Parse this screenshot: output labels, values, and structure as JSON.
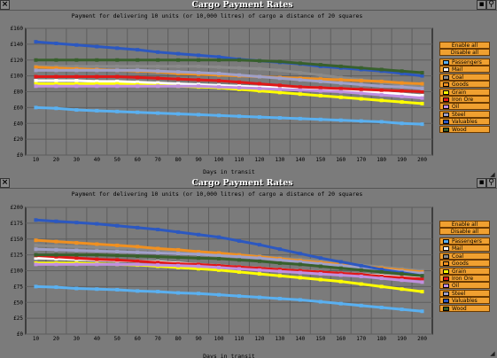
{
  "windows": [
    {
      "title": "Cargo Payment Rates",
      "subtitle": "Payment for delivering 10 units (or 10,000 litres) of cargo a distance of 20 squares",
      "buttons": {
        "enable_all": "Enable all",
        "disable_all": "Disable all"
      },
      "legend": [
        {
          "label": "Passengers",
          "color": "#5ab0f0"
        },
        {
          "label": "Mail",
          "color": "#ffffff"
        },
        {
          "label": "Coal",
          "color": "#8a8a8a"
        },
        {
          "label": "Goods",
          "color": "#f09020"
        },
        {
          "label": "Grain",
          "color": "#ffff00"
        },
        {
          "label": "Iron Ore",
          "color": "#e01818"
        },
        {
          "label": "Oil",
          "color": "#c090e0"
        },
        {
          "label": "Steel",
          "color": "#a0a0c8"
        },
        {
          "label": "Valuables",
          "color": "#2c58c0"
        },
        {
          "label": "Wood",
          "color": "#38602c"
        }
      ],
      "chart_data": {
        "type": "line",
        "title": "Cargo Payment Rates",
        "subtitle": "Payment for delivering 10 units (or 10,000 litres) of cargo a distance of 20 squares",
        "xlabel": "Days in transit",
        "ylabel": "",
        "x": [
          10,
          20,
          30,
          40,
          50,
          60,
          70,
          80,
          90,
          100,
          110,
          120,
          130,
          140,
          150,
          160,
          170,
          180,
          190,
          200
        ],
        "x_ticks": [
          "10",
          "20",
          "30",
          "40",
          "50",
          "60",
          "70",
          "80",
          "90",
          "100",
          "110",
          "120",
          "130",
          "140",
          "150",
          "160",
          "170",
          "180",
          "190",
          "200"
        ],
        "y_ticks": [
          "£0",
          "£20",
          "£40",
          "£60",
          "£80",
          "£100",
          "£120",
          "£140",
          "£160"
        ],
        "ylim": [
          0,
          160
        ],
        "grid": true,
        "series": [
          {
            "name": "Passengers",
            "color": "#5ab0f0",
            "values": [
              60,
              59,
              57,
              56,
              55,
              54,
              53,
              52,
              51,
              50,
              49,
              48,
              47,
              46,
              45,
              44,
              43,
              42,
              40,
              39
            ]
          },
          {
            "name": "Mail",
            "color": "#ffffff",
            "values": [
              94,
              94,
              94,
              93,
              93,
              92,
              91,
              90,
              89,
              88,
              87,
              86,
              85,
              84,
              83,
              82,
              80,
              79,
              77,
              75
            ]
          },
          {
            "name": "Coal",
            "color": "#8a8a8a",
            "values": [
              112,
              112,
              112,
              112,
              112,
              112,
              112,
              112,
              112,
              111,
              110,
              109,
              107,
              104,
              101,
              98,
              95,
              92,
              89,
              86
            ]
          },
          {
            "name": "Goods",
            "color": "#f09020",
            "values": [
              111,
              110,
              109,
              108,
              107,
              106,
              105,
              103,
              102,
              101,
              100,
              99,
              98,
              97,
              96,
              95,
              94,
              93,
              91,
              90
            ]
          },
          {
            "name": "Grain",
            "color": "#ffff00",
            "values": [
              90,
              90,
              90,
              90,
              90,
              89,
              88,
              87,
              86,
              85,
              83,
              81,
              79,
              77,
              75,
              73,
              71,
              69,
              67,
              65
            ]
          },
          {
            "name": "Iron Ore",
            "color": "#e01818",
            "values": [
              99,
              99,
              99,
              99,
              99,
              98,
              97,
              96,
              95,
              94,
              92,
              90,
              88,
              86,
              85,
              84,
              83,
              82,
              81,
              80
            ]
          },
          {
            "name": "Oil",
            "color": "#c090e0",
            "values": [
              87,
              87,
              87,
              87,
              87,
              87,
              87,
              87,
              87,
              86,
              85,
              84,
              83,
              82,
              81,
              80,
              78,
              76,
              74,
              72
            ]
          },
          {
            "name": "Steel",
            "color": "#a0a0c8",
            "values": [
              107,
              107,
              107,
              107,
              107,
              107,
              106,
              105,
              104,
              103,
              101,
              99,
              97,
              95,
              93,
              91,
              89,
              87,
              86,
              84
            ]
          },
          {
            "name": "Valuables",
            "color": "#2c58c0",
            "values": [
              143,
              141,
              139,
              137,
              135,
              133,
              130,
              128,
              126,
              124,
              121,
              119,
              117,
              115,
              112,
              110,
              108,
              106,
              103,
              100
            ]
          },
          {
            "name": "Wood",
            "color": "#38602c",
            "values": [
              120,
              120,
              120,
              120,
              120,
              120,
              120,
              120,
              120,
              120,
              120,
              119,
              118,
              116,
              114,
              112,
              110,
              108,
              106,
              104
            ]
          }
        ]
      }
    },
    {
      "title": "Cargo Payment Rates",
      "subtitle": "Payment for delivering 10 units (or 10,000 litres) of cargo a distance of 20 squares",
      "buttons": {
        "enable_all": "Enable all",
        "disable_all": "Disable all"
      },
      "legend": [
        {
          "label": "Passengers",
          "color": "#5ab0f0"
        },
        {
          "label": "Mail",
          "color": "#ffffff"
        },
        {
          "label": "Coal",
          "color": "#8a8a8a"
        },
        {
          "label": "Goods",
          "color": "#f09020"
        },
        {
          "label": "Grain",
          "color": "#ffff00"
        },
        {
          "label": "Iron Ore",
          "color": "#e01818"
        },
        {
          "label": "Oil",
          "color": "#c090e0"
        },
        {
          "label": "Steel",
          "color": "#a0a0c8"
        },
        {
          "label": "Valuables",
          "color": "#2c58c0"
        },
        {
          "label": "Wood",
          "color": "#38602c"
        }
      ],
      "chart_data": {
        "type": "line",
        "title": "Cargo Payment Rates",
        "subtitle": "Payment for delivering 10 units (or 10,000 litres) of cargo a distance of 20 squares",
        "xlabel": "Days in transit",
        "ylabel": "",
        "x": [
          10,
          20,
          30,
          40,
          50,
          60,
          70,
          80,
          90,
          100,
          110,
          120,
          130,
          140,
          150,
          160,
          170,
          180,
          190,
          200
        ],
        "x_ticks": [
          "10",
          "20",
          "30",
          "40",
          "50",
          "60",
          "70",
          "80",
          "90",
          "100",
          "110",
          "120",
          "130",
          "140",
          "150",
          "160",
          "170",
          "180",
          "190",
          "200"
        ],
        "y_ticks": [
          "£0",
          "£25",
          "£50",
          "£75",
          "£100",
          "£125",
          "£150",
          "£175",
          "£200"
        ],
        "ylim": [
          0,
          200
        ],
        "grid": true,
        "series": [
          {
            "name": "Passengers",
            "color": "#5ab0f0",
            "values": [
              75,
              74,
              72,
              71,
              70,
              68,
              67,
              65,
              64,
              62,
              60,
              58,
              56,
              54,
              51,
              48,
              45,
              42,
              39,
              36
            ]
          },
          {
            "name": "Mail",
            "color": "#ffffff",
            "values": [
              120,
              119,
              118,
              117,
              116,
              115,
              114,
              112,
              110,
              108,
              106,
              104,
              102,
              100,
              98,
              96,
              94,
              92,
              90,
              88
            ]
          },
          {
            "name": "Coal",
            "color": "#8a8a8a",
            "values": [
              140,
              139,
              138,
              137,
              136,
              135,
              133,
              131,
              129,
              127,
              125,
              123,
              120,
              118,
              115,
              112,
              109,
              106,
              103,
              100
            ]
          },
          {
            "name": "Goods",
            "color": "#f09020",
            "values": [
              148,
              146,
              144,
              142,
              140,
              138,
              135,
              133,
              130,
              128,
              125,
              122,
              119,
              116,
              113,
              110,
              107,
              104,
              101,
              98
            ]
          },
          {
            "name": "Grain",
            "color": "#ffff00",
            "values": [
              112,
              112,
              112,
              111,
              110,
              109,
              107,
              105,
              103,
              101,
              98,
              95,
              92,
              89,
              86,
              83,
              79,
              75,
              71,
              67
            ]
          },
          {
            "name": "Iron Ore",
            "color": "#e01818",
            "values": [
              124,
              122,
              120,
              118,
              117,
              115,
              113,
              111,
              110,
              108,
              106,
              104,
              102,
              100,
              98,
              96,
              94,
              91,
              89,
              87
            ]
          },
          {
            "name": "Oil",
            "color": "#c090e0",
            "values": [
              110,
              110,
              110,
              110,
              110,
              110,
              109,
              108,
              107,
              105,
              103,
              101,
              99,
              97,
              95,
              93,
              91,
              88,
              85,
              82
            ]
          },
          {
            "name": "Steel",
            "color": "#a0a0c8",
            "values": [
              134,
              133,
              132,
              131,
              130,
              129,
              128,
              127,
              126,
              124,
              122,
              120,
              117,
              114,
              111,
              108,
              105,
              102,
              99,
              96
            ]
          },
          {
            "name": "Valuables",
            "color": "#2c58c0",
            "values": [
              180,
              178,
              176,
              174,
              171,
              168,
              165,
              161,
              157,
              153,
              147,
              141,
              134,
              127,
              120,
              114,
              108,
              102,
              97,
              92
            ]
          },
          {
            "name": "Wood",
            "color": "#38602c",
            "values": [
              125,
              125,
              125,
              125,
              124,
              123,
              122,
              121,
              120,
              119,
              117,
              115,
              112,
              110,
              107,
              104,
              101,
              98,
              95,
              92
            ]
          }
        ]
      }
    }
  ]
}
